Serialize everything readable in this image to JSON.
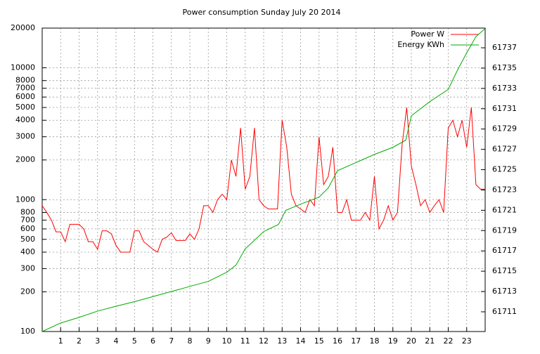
{
  "chart_data": {
    "type": "line",
    "title": "Power consumption Sunday July 20 2014",
    "xlim": [
      0,
      24
    ],
    "xticks": [
      1,
      2,
      3,
      4,
      5,
      6,
      7,
      8,
      9,
      10,
      11,
      12,
      13,
      14,
      15,
      16,
      17,
      18,
      19,
      20,
      21,
      22,
      23
    ],
    "ylim": [
      100,
      20000
    ],
    "log_y": true,
    "yticks": [
      100,
      200,
      300,
      400,
      500,
      600,
      700,
      800,
      1000,
      2000,
      3000,
      4000,
      5000,
      6000,
      7000,
      8000,
      10000,
      20000
    ],
    "y2lim": [
      61709.06,
      61738.94
    ],
    "y2ticks": [
      61711,
      61713,
      61715,
      61717,
      61719,
      61721,
      61723,
      61725,
      61727,
      61729,
      61731,
      61733,
      61735,
      61737
    ],
    "grid": true,
    "legend": "top-right",
    "series": [
      {
        "name": "Power W",
        "color": "#ff0000",
        "x": [
          0,
          0.25,
          0.5,
          0.75,
          1,
          1.25,
          1.5,
          1.75,
          2,
          2.25,
          2.5,
          2.75,
          3,
          3.25,
          3.5,
          3.75,
          4,
          4.25,
          4.5,
          4.75,
          5,
          5.25,
          5.5,
          5.75,
          6,
          6.25,
          6.5,
          6.75,
          7,
          7.25,
          7.5,
          7.75,
          8,
          8.25,
          8.5,
          8.75,
          9,
          9.25,
          9.5,
          9.75,
          10,
          10.25,
          10.5,
          10.75,
          11,
          11.25,
          11.5,
          11.75,
          12,
          12.25,
          12.5,
          12.75,
          13,
          13.25,
          13.5,
          13.75,
          14,
          14.25,
          14.5,
          14.75,
          15,
          15.25,
          15.5,
          15.75,
          16,
          16.25,
          16.5,
          16.75,
          17,
          17.25,
          17.5,
          17.75,
          18,
          18.25,
          18.5,
          18.75,
          19,
          19.25,
          19.5,
          19.75,
          20,
          20.25,
          20.5,
          20.75,
          21,
          21.25,
          21.5,
          21.75,
          22,
          22.25,
          22.5,
          22.75,
          23,
          23.25,
          23.5,
          23.75,
          24
        ],
        "values": [
          900,
          800,
          700,
          570,
          570,
          480,
          650,
          650,
          650,
          600,
          480,
          480,
          420,
          580,
          580,
          550,
          450,
          400,
          400,
          400,
          580,
          580,
          480,
          450,
          420,
          400,
          500,
          520,
          560,
          490,
          490,
          490,
          550,
          500,
          600,
          900,
          900,
          800,
          1000,
          1100,
          1000,
          2000,
          1500,
          3500,
          1200,
          1500,
          3500,
          1000,
          900,
          850,
          850,
          850,
          4000,
          2500,
          1100,
          900,
          850,
          800,
          1000,
          900,
          3000,
          1300,
          1500,
          2500,
          800,
          800,
          1000,
          700,
          700,
          700,
          800,
          700,
          1500,
          600,
          700,
          900,
          700,
          800,
          2600,
          5000,
          1800,
          1300,
          900,
          1000,
          800,
          900,
          1000,
          800,
          3500,
          4000,
          3000,
          4000,
          2500,
          5000,
          1300,
          1200,
          1200
        ]
      },
      {
        "name": "Energy KWh",
        "color": "#00aa00",
        "axis": "y2",
        "x": [
          0,
          1,
          2,
          3,
          4,
          5,
          6,
          7,
          8,
          9,
          10,
          10.5,
          11,
          12,
          12.8,
          13.2,
          14,
          15,
          15.5,
          16,
          17,
          18,
          19,
          19.7,
          20,
          21,
          22,
          22.5,
          23,
          23.5,
          24
        ],
        "values": [
          61709.06,
          61709.9,
          61710.45,
          61711.07,
          61711.55,
          61712,
          61712.5,
          61713,
          61713.5,
          61714,
          61714.9,
          61715.6,
          61717.2,
          61718.9,
          61719.6,
          61721,
          61721.6,
          61722.3,
          61723.2,
          61724.9,
          61725.7,
          61726.5,
          61727.2,
          61727.9,
          61730.3,
          61731.7,
          61732.9,
          61734.8,
          61736.5,
          61738.1,
          61738.9
        ]
      }
    ]
  }
}
